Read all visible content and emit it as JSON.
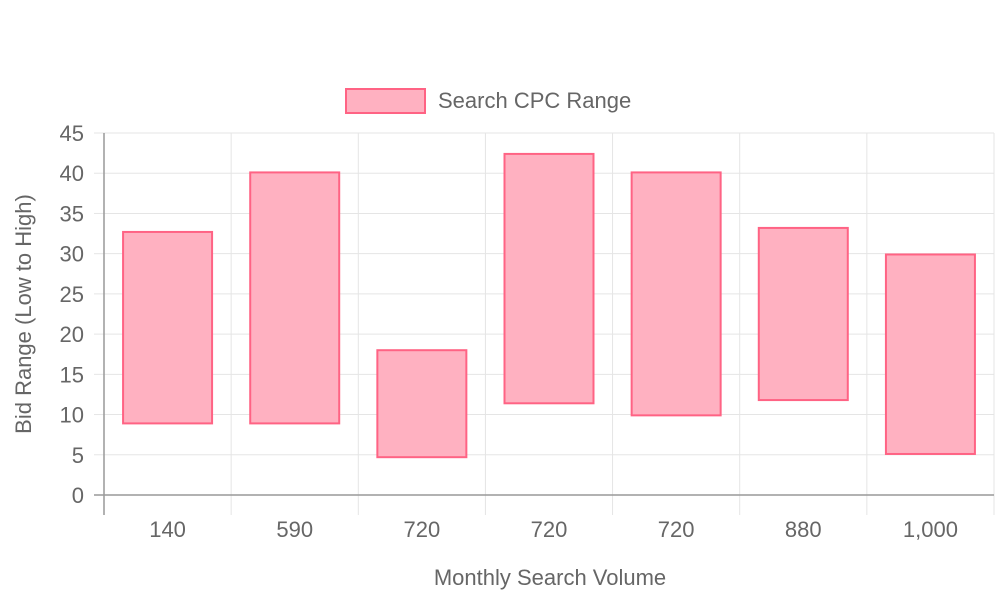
{
  "chart_data": {
    "type": "bar",
    "subtype": "floating-range",
    "categories": [
      "140",
      "590",
      "720",
      "720",
      "720",
      "880",
      "1,000"
    ],
    "series": [
      {
        "name": "Search CPC Range",
        "ranges": [
          [
            8.9,
            32.7
          ],
          [
            8.9,
            40.1
          ],
          [
            4.7,
            18.0
          ],
          [
            11.4,
            42.4
          ],
          [
            9.9,
            40.1
          ],
          [
            11.8,
            33.2
          ],
          [
            5.1,
            29.9
          ]
        ]
      }
    ],
    "title": "",
    "xlabel": "Monthly Search Volume",
    "ylabel": "Bid Range (Low to High)",
    "ylim": [
      0,
      45
    ],
    "yticks": [
      0,
      5,
      10,
      15,
      20,
      25,
      30,
      35,
      40,
      45
    ],
    "grid": true,
    "legend_position": "top-center",
    "colors": {
      "bar_fill": "#ffb1c1",
      "bar_border": "#ff6384",
      "grid": "#e5e5e5",
      "axis": "#999999",
      "text": "#666666"
    }
  }
}
